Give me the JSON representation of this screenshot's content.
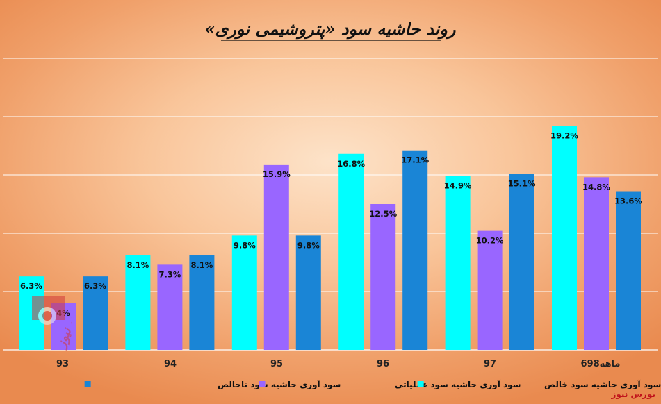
{
  "title": "روند حاشیه سود «پتروشیمی نوری»",
  "brand": "بورس نیوز",
  "logo_text": "بورس نیوز",
  "colors": {
    "net": "#00ffff",
    "operating": "#9966ff",
    "gross": "#1a85d6",
    "grid": "#ffffff"
  },
  "chart_data": {
    "type": "bar",
    "title": "روند حاشیه سود «پتروشیمی نوری»",
    "categories": [
      "93",
      "94",
      "95",
      "96",
      "97",
      "6ماهه98"
    ],
    "ylim": [
      0,
      25
    ],
    "grid": true,
    "legend_position": "bottom",
    "series": [
      {
        "name": "سود آوری حاشیه سود خالص",
        "color": "#00ffff",
        "values": [
          6.3,
          8.1,
          9.8,
          16.8,
          14.9,
          19.2
        ],
        "labels": [
          "6.3%",
          "8.1%",
          "9.8%",
          "16.8%",
          "14.9%",
          "19.2%"
        ]
      },
      {
        "name": "سود آوری حاشیه سود عملیاتی",
        "color": "#9966ff",
        "values": [
          4,
          7.3,
          15.9,
          12.5,
          10.2,
          14.8
        ],
        "labels": [
          "4%",
          "7.3%",
          "15.9%",
          "12.5%",
          "10.2%",
          "14.8%"
        ]
      },
      {
        "name": "سود آوری حاشیه سود ناخالص",
        "color": "#1a85d6",
        "values": [
          6.3,
          8.1,
          9.8,
          17.1,
          15.1,
          13.6
        ],
        "labels": [
          "6.3%",
          "8.1%",
          "9.8%",
          "17.1%",
          "15.1%",
          "13.6%"
        ]
      }
    ]
  }
}
